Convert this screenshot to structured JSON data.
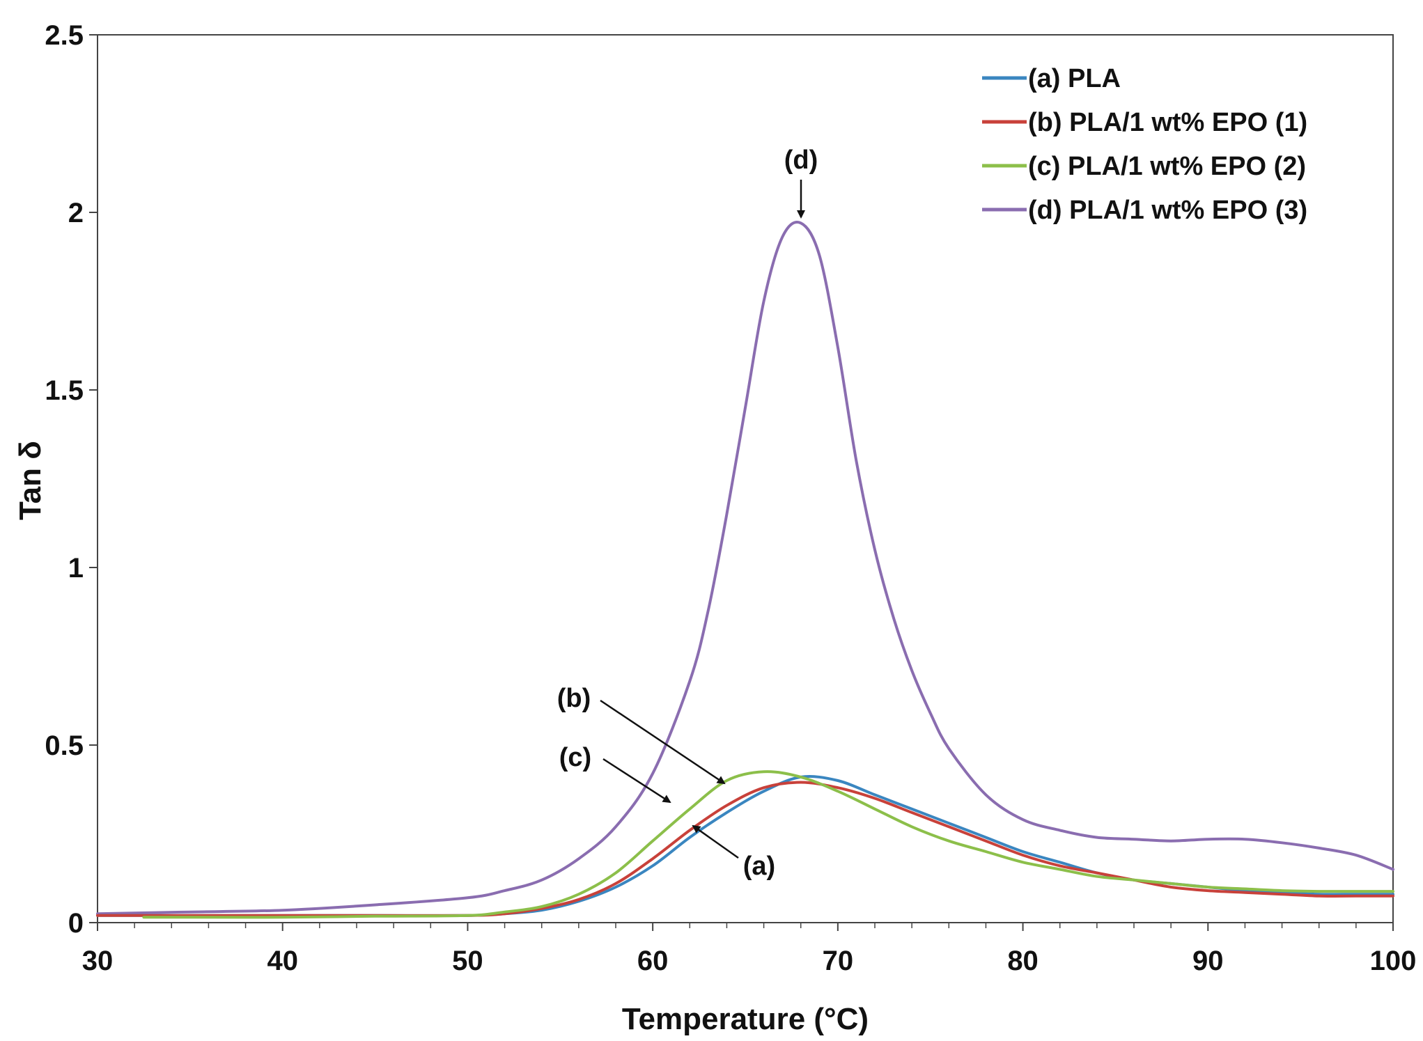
{
  "chart_data": {
    "type": "line",
    "title": "",
    "xlabel": "Temperature (°C)",
    "ylabel": "Tan δ",
    "xlim": [
      30,
      100
    ],
    "ylim": [
      0,
      2.5
    ],
    "xticks": [
      "30",
      "40",
      "50",
      "60",
      "70",
      "80",
      "90",
      "100"
    ],
    "yticks": [
      "0",
      "0.5",
      "1",
      "1.5",
      "2",
      "2.5"
    ],
    "grid": false,
    "legend_position": "top-right",
    "series": [
      {
        "name": "(a) PLA",
        "label": "(a)",
        "color": "#3a86c0",
        "x": [
          30,
          35,
          40,
          45,
          50,
          52,
          54,
          56,
          58,
          60,
          62,
          64,
          66,
          68,
          70,
          72,
          74,
          76,
          78,
          80,
          82,
          84,
          86,
          88,
          90,
          92,
          94,
          96,
          98,
          100
        ],
        "y": [
          0.02,
          0.02,
          0.02,
          0.02,
          0.02,
          0.025,
          0.035,
          0.06,
          0.1,
          0.16,
          0.24,
          0.31,
          0.37,
          0.41,
          0.4,
          0.36,
          0.32,
          0.28,
          0.24,
          0.2,
          0.17,
          0.14,
          0.12,
          0.11,
          0.1,
          0.09,
          0.085,
          0.08,
          0.08,
          0.08
        ]
      },
      {
        "name": "(b) PLA/1 wt% EPO (1)",
        "label": "(b)",
        "color": "#c8413a",
        "x": [
          30,
          35,
          40,
          45,
          50,
          52,
          54,
          56,
          58,
          60,
          62,
          64,
          66,
          68,
          70,
          72,
          74,
          76,
          78,
          80,
          82,
          84,
          86,
          88,
          90,
          92,
          94,
          96,
          98,
          100
        ],
        "y": [
          0.02,
          0.02,
          0.02,
          0.02,
          0.02,
          0.025,
          0.04,
          0.065,
          0.11,
          0.18,
          0.26,
          0.33,
          0.38,
          0.395,
          0.38,
          0.35,
          0.31,
          0.27,
          0.23,
          0.19,
          0.16,
          0.14,
          0.12,
          0.1,
          0.09,
          0.085,
          0.08,
          0.075,
          0.075,
          0.075
        ]
      },
      {
        "name": "(c) PLA/1 wt% EPO (2)",
        "label": "(c)",
        "color": "#8cbf4a",
        "x": [
          32.5,
          35,
          40,
          45,
          50,
          52,
          54,
          56,
          58,
          60,
          62,
          64,
          66,
          68,
          70,
          72,
          74,
          76,
          78,
          80,
          82,
          84,
          86,
          88,
          90,
          92,
          94,
          96,
          98,
          100
        ],
        "y": [
          0.015,
          0.015,
          0.015,
          0.018,
          0.02,
          0.03,
          0.045,
          0.08,
          0.14,
          0.23,
          0.32,
          0.4,
          0.425,
          0.41,
          0.37,
          0.32,
          0.27,
          0.23,
          0.2,
          0.17,
          0.15,
          0.13,
          0.12,
          0.11,
          0.1,
          0.095,
          0.09,
          0.088,
          0.088,
          0.088
        ]
      },
      {
        "name": "(d) PLA/1 wt% EPO (3)",
        "label": "(d)",
        "color": "#8a6db0",
        "x": [
          30,
          35,
          40,
          45,
          50,
          52,
          54,
          56,
          58,
          60,
          62,
          63,
          64,
          65,
          66,
          67,
          68,
          69,
          70,
          71,
          72,
          73,
          74,
          75,
          76,
          78,
          80,
          82,
          84,
          86,
          88,
          90,
          92,
          94,
          96,
          98,
          100
        ],
        "y": [
          0.025,
          0.03,
          0.035,
          0.05,
          0.07,
          0.09,
          0.12,
          0.18,
          0.27,
          0.42,
          0.68,
          0.88,
          1.15,
          1.45,
          1.75,
          1.93,
          1.97,
          1.88,
          1.62,
          1.3,
          1.05,
          0.86,
          0.71,
          0.59,
          0.49,
          0.36,
          0.29,
          0.26,
          0.24,
          0.235,
          0.23,
          0.235,
          0.235,
          0.225,
          0.21,
          0.19,
          0.15
        ]
      }
    ],
    "annotations": [
      {
        "text": "(d)",
        "target_series": "(d) PLA/1 wt% EPO (3)",
        "x": 68,
        "y": 1.97
      },
      {
        "text": "(b)",
        "target_series": "(b) PLA/1 wt% EPO (1)",
        "x": 64.2,
        "y": 0.37
      },
      {
        "text": "(c)",
        "target_series": "(c) PLA/1 wt% EPO (2)",
        "x": 61.2,
        "y": 0.31
      },
      {
        "text": "(a)",
        "target_series": "(a) PLA",
        "x": 62.2,
        "y": 0.25
      }
    ]
  }
}
